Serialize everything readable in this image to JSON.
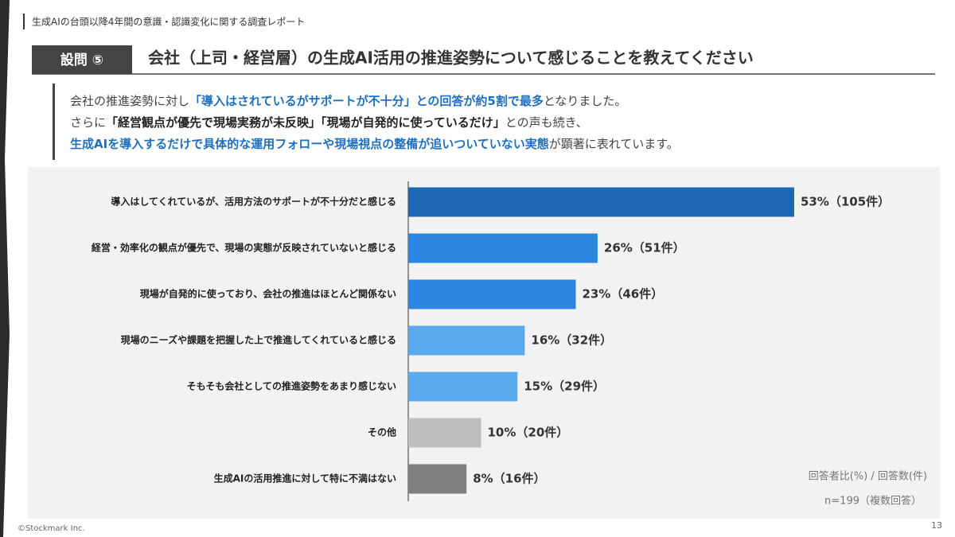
{
  "header": {
    "report_title": "生成AIの台頭以降4年間の意識・認識変化に関する調査レポート"
  },
  "question": {
    "label": "設問 ⑤",
    "title": "会社（上司・経営層）の生成AI活用の推進姿勢について感じることを教えてください"
  },
  "summary": [
    [
      {
        "text": "会社の推進姿勢に対し",
        "color": "#444444",
        "bold": false
      },
      {
        "text": "「導入はされているがサポートが不十分」との回答が約5割で最多",
        "color": "#1f6fbf",
        "bold": true
      },
      {
        "text": "となりました。",
        "color": "#444444",
        "bold": false
      }
    ],
    [
      {
        "text": "さらに",
        "color": "#444444",
        "bold": false
      },
      {
        "text": "「経営観点が優先で現場実務が未反映」「現場が自発的に使っているだけ」",
        "color": "#222222",
        "bold": true
      },
      {
        "text": "との声も続き、",
        "color": "#444444",
        "bold": false
      }
    ],
    [
      {
        "text": "生成AIを導入するだけで具体的な運用フォローや現場視点の整備が追いついていない実態",
        "color": "#1f6fbf",
        "bold": true
      },
      {
        "text": "が顕著に表れています。",
        "color": "#444444",
        "bold": false
      }
    ]
  ],
  "chart_data": {
    "type": "hbar",
    "categories": [
      "導入はしてくれているが、活用方法のサポートが不十分だと感じる",
      "経営・効率化の観点が優先で、現場の実態が反映されていないと感じる",
      "現場が自発的に使っており、会社の推進はほとんど関係ない",
      "現場のニーズや課題を把握した上で推進してくれていると感じる",
      "そもそも会社としての推進姿勢をあまり感じない",
      "その他",
      "生成AIの活用推進に対して特に不満はない"
    ],
    "values": [
      53,
      26,
      23,
      16,
      15,
      10,
      8
    ],
    "value_labels": [
      "53%（105件）",
      "26%（51件）",
      "23%（46件）",
      "16%（32件）",
      "15%（29件）",
      "10%（20件）",
      "8%（16件）"
    ],
    "colors": [
      "#1e66b4",
      "#2a86de",
      "#2a86de",
      "#5aa9ec",
      "#5aa9ec",
      "#bdbdbd",
      "#7f7f7f"
    ],
    "xlim": [
      0,
      60
    ]
  },
  "notes": {
    "legend": "回答者比(%) / 回答数(件)",
    "sample": "n=199（複数回答）"
  },
  "footer": {
    "copyright": "©Stockmark Inc.",
    "page": "13"
  }
}
